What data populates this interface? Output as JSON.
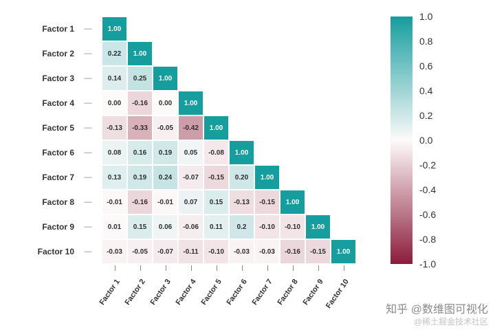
{
  "chart_data": {
    "type": "heatmap",
    "title": "",
    "xlabel": "",
    "ylabel": "",
    "categories": [
      "Factor 1",
      "Factor 2",
      "Factor 3",
      "Factor 4",
      "Factor 5",
      "Factor 6",
      "Factor 7",
      "Factor 8",
      "Factor 9",
      "Factor 10"
    ],
    "matrix_labels": [
      [
        "1.00"
      ],
      [
        "0.22",
        "1.00"
      ],
      [
        "0.14",
        "0.25",
        "1.00"
      ],
      [
        "0.00",
        "-0.16",
        "0.00",
        "1.00"
      ],
      [
        "-0.13",
        "-0.33",
        "-0.05",
        "-0.42",
        "1.00"
      ],
      [
        "0.08",
        "0.16",
        "0.19",
        "0.05",
        "-0.08",
        "1.00"
      ],
      [
        "0.13",
        "0.19",
        "0.24",
        "-0.07",
        "-0.15",
        "0.20",
        "1.00"
      ],
      [
        "-0.01",
        "-0.16",
        "-0.01",
        "0.07",
        "0.15",
        "-0.13",
        "-0.15",
        "1.00"
      ],
      [
        "0.01",
        "0.15",
        "0.06",
        "-0.06",
        "0.11",
        "0.2",
        "-0.10",
        "-0.10",
        "1.00"
      ],
      [
        "-0.03",
        "-0.05",
        "-0.07",
        "-0.11",
        "-0.10",
        "-0.03",
        "-0.03",
        "-0.16",
        "-0.15",
        "1.00"
      ]
    ],
    "value_range": [
      -1,
      1
    ],
    "grid": false,
    "legend_position": "right",
    "colorbar": {
      "ticks": [
        "1.0",
        "0.8",
        "0.6",
        "0.4",
        "0.2",
        "0.0",
        "-0.2",
        "-0.4",
        "-0.6",
        "-0.8",
        "-1.0"
      ],
      "max_color": "#169d9e",
      "mid_color": "#fdfafa",
      "min_color": "#8c1c3c"
    }
  },
  "watermark": {
    "line1": "知乎 @数维图可视化",
    "line2": "@稀土掘金技术社区"
  }
}
